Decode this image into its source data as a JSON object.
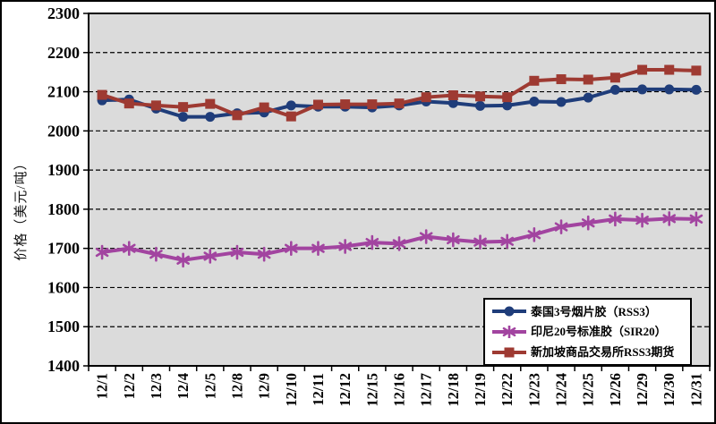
{
  "chart_data": {
    "type": "line",
    "title": "",
    "xlabel": "",
    "ylabel": "价格（美元/吨）",
    "ylim": [
      1400,
      2300
    ],
    "y_ticks": [
      2300,
      2200,
      2100,
      2000,
      1900,
      1800,
      1700,
      1600,
      1500,
      1400
    ],
    "grid": true,
    "gridline_style": "dashed",
    "plot_background": "#DBDBDB",
    "legend_position": "bottom-right-inside",
    "categories": [
      "12/1",
      "12/2",
      "12/3",
      "12/4",
      "12/5",
      "12/8",
      "12/9",
      "12/10",
      "12/11",
      "12/12",
      "12/15",
      "12/16",
      "12/17",
      "12/18",
      "12/19",
      "12/22",
      "12/23",
      "12/24",
      "12/25",
      "12/26",
      "12/29",
      "12/30",
      "12/31"
    ],
    "series": [
      {
        "name": "泰国3号烟片胶（RSS3）",
        "color": "#1F3D7A",
        "marker": "circle",
        "values": [
          2078,
          2080,
          2057,
          2036,
          2036,
          2045,
          2047,
          2065,
          2062,
          2062,
          2060,
          2065,
          2075,
          2071,
          2064,
          2065,
          2075,
          2074,
          2085,
          2105,
          2106,
          2106,
          2105
        ]
      },
      {
        "name": "印尼20号标准胶（SIR20）",
        "color": "#A244A0",
        "marker": "asterisk",
        "values": [
          1690,
          1700,
          1685,
          1670,
          1680,
          1690,
          1685,
          1700,
          1700,
          1705,
          1715,
          1712,
          1730,
          1722,
          1716,
          1718,
          1735,
          1755,
          1765,
          1775,
          1772,
          1776,
          1775
        ]
      },
      {
        "name": "新加坡商品交易所RSS3期货",
        "color": "#9E3A32",
        "marker": "square",
        "values": [
          2092,
          2070,
          2065,
          2061,
          2069,
          2040,
          2060,
          2037,
          2067,
          2068,
          2068,
          2070,
          2086,
          2091,
          2088,
          2086,
          2128,
          2132,
          2131,
          2136,
          2156,
          2156,
          2154
        ]
      }
    ]
  }
}
